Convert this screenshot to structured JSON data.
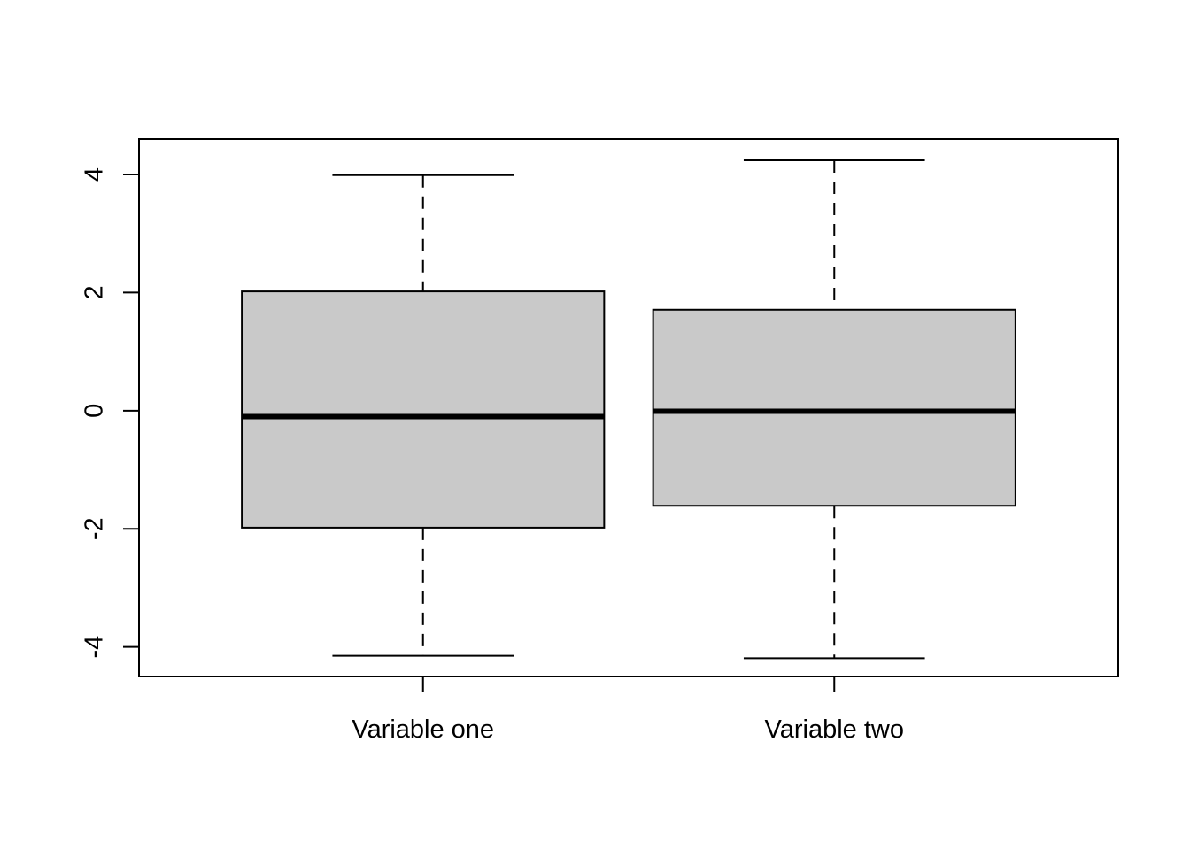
{
  "chart_data": {
    "type": "boxplot",
    "title": "",
    "xlabel": "",
    "ylabel": "",
    "ylim": [
      -4.5,
      4.6
    ],
    "y_ticks": [
      -4,
      -2,
      0,
      2,
      4
    ],
    "y_tick_labels": [
      "-4",
      "-2",
      "0",
      "2",
      "4"
    ],
    "categories": [
      "Variable one",
      "Variable two"
    ],
    "boxes": [
      {
        "category": "Variable one",
        "whisker_low": -4.15,
        "q1": -1.98,
        "median": -0.1,
        "q3": 2.02,
        "whisker_high": 3.99
      },
      {
        "category": "Variable two",
        "whisker_low": -4.19,
        "q1": -1.61,
        "median": -0.01,
        "q3": 1.71,
        "whisker_high": 4.24
      }
    ],
    "box_fill": "#c9c9c9",
    "line_color": "#000000",
    "grid": false,
    "legend": "none"
  }
}
